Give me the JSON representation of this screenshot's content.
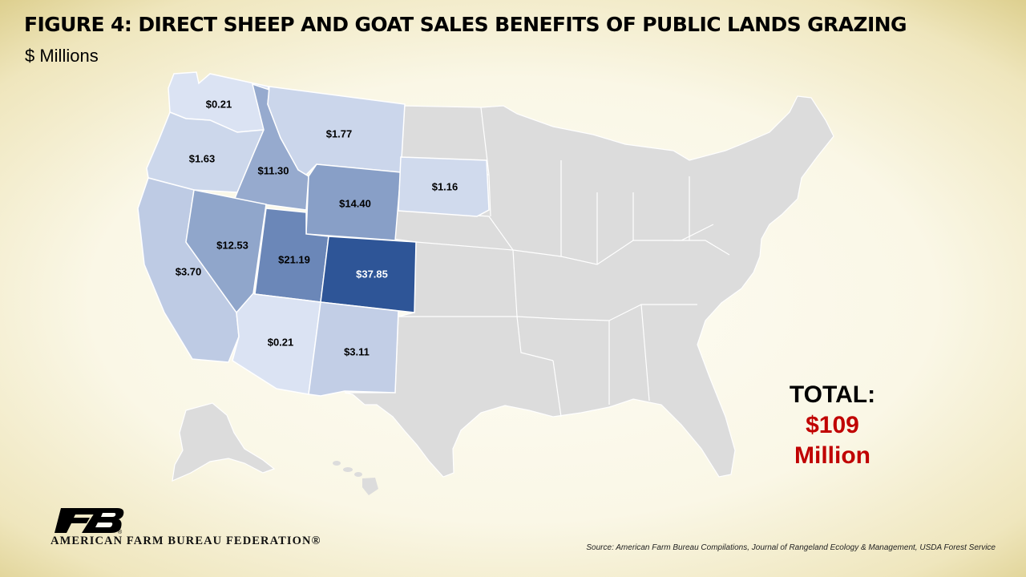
{
  "title": "FIGURE 4: DIRECT SHEEP AND GOAT SALES BENEFITS OF PUBLIC LANDS GRAZING",
  "subtitle": "$ Millions",
  "total": {
    "label": "TOTAL:",
    "amount": "$109",
    "unit": "Million"
  },
  "organization": "AMERICAN FARM BUREAU FEDERATION®",
  "source": "Source: American Farm Bureau Compilations, Journal of Rangeland Ecology & Management, USDA Forest Service",
  "colors": {
    "background": "#faf7e6",
    "base_state": "#dcdcdc",
    "state_border": "#ffffff",
    "scale_light": "#dbe3f3",
    "scale_dark": "#2e5597",
    "total_accent": "#c00000",
    "logo": "#000000"
  },
  "states": [
    {
      "id": "WA",
      "value": 0.21,
      "label": "$0.21"
    },
    {
      "id": "OR",
      "value": 1.63,
      "label": "$1.63"
    },
    {
      "id": "CA",
      "value": 3.7,
      "label": "$3.70"
    },
    {
      "id": "ID",
      "value": 11.3,
      "label": "$11.30"
    },
    {
      "id": "NV",
      "value": 12.53,
      "label": "$12.53"
    },
    {
      "id": "MT",
      "value": 1.77,
      "label": "$1.77"
    },
    {
      "id": "WY",
      "value": 14.4,
      "label": "$14.40"
    },
    {
      "id": "UT",
      "value": 21.19,
      "label": "$21.19"
    },
    {
      "id": "CO",
      "value": 37.85,
      "label": "$37.85"
    },
    {
      "id": "AZ",
      "value": 0.21,
      "label": "$0.21"
    },
    {
      "id": "NM",
      "value": 3.11,
      "label": "$3.11"
    },
    {
      "id": "SD",
      "value": 1.16,
      "label": "$1.16"
    }
  ]
}
